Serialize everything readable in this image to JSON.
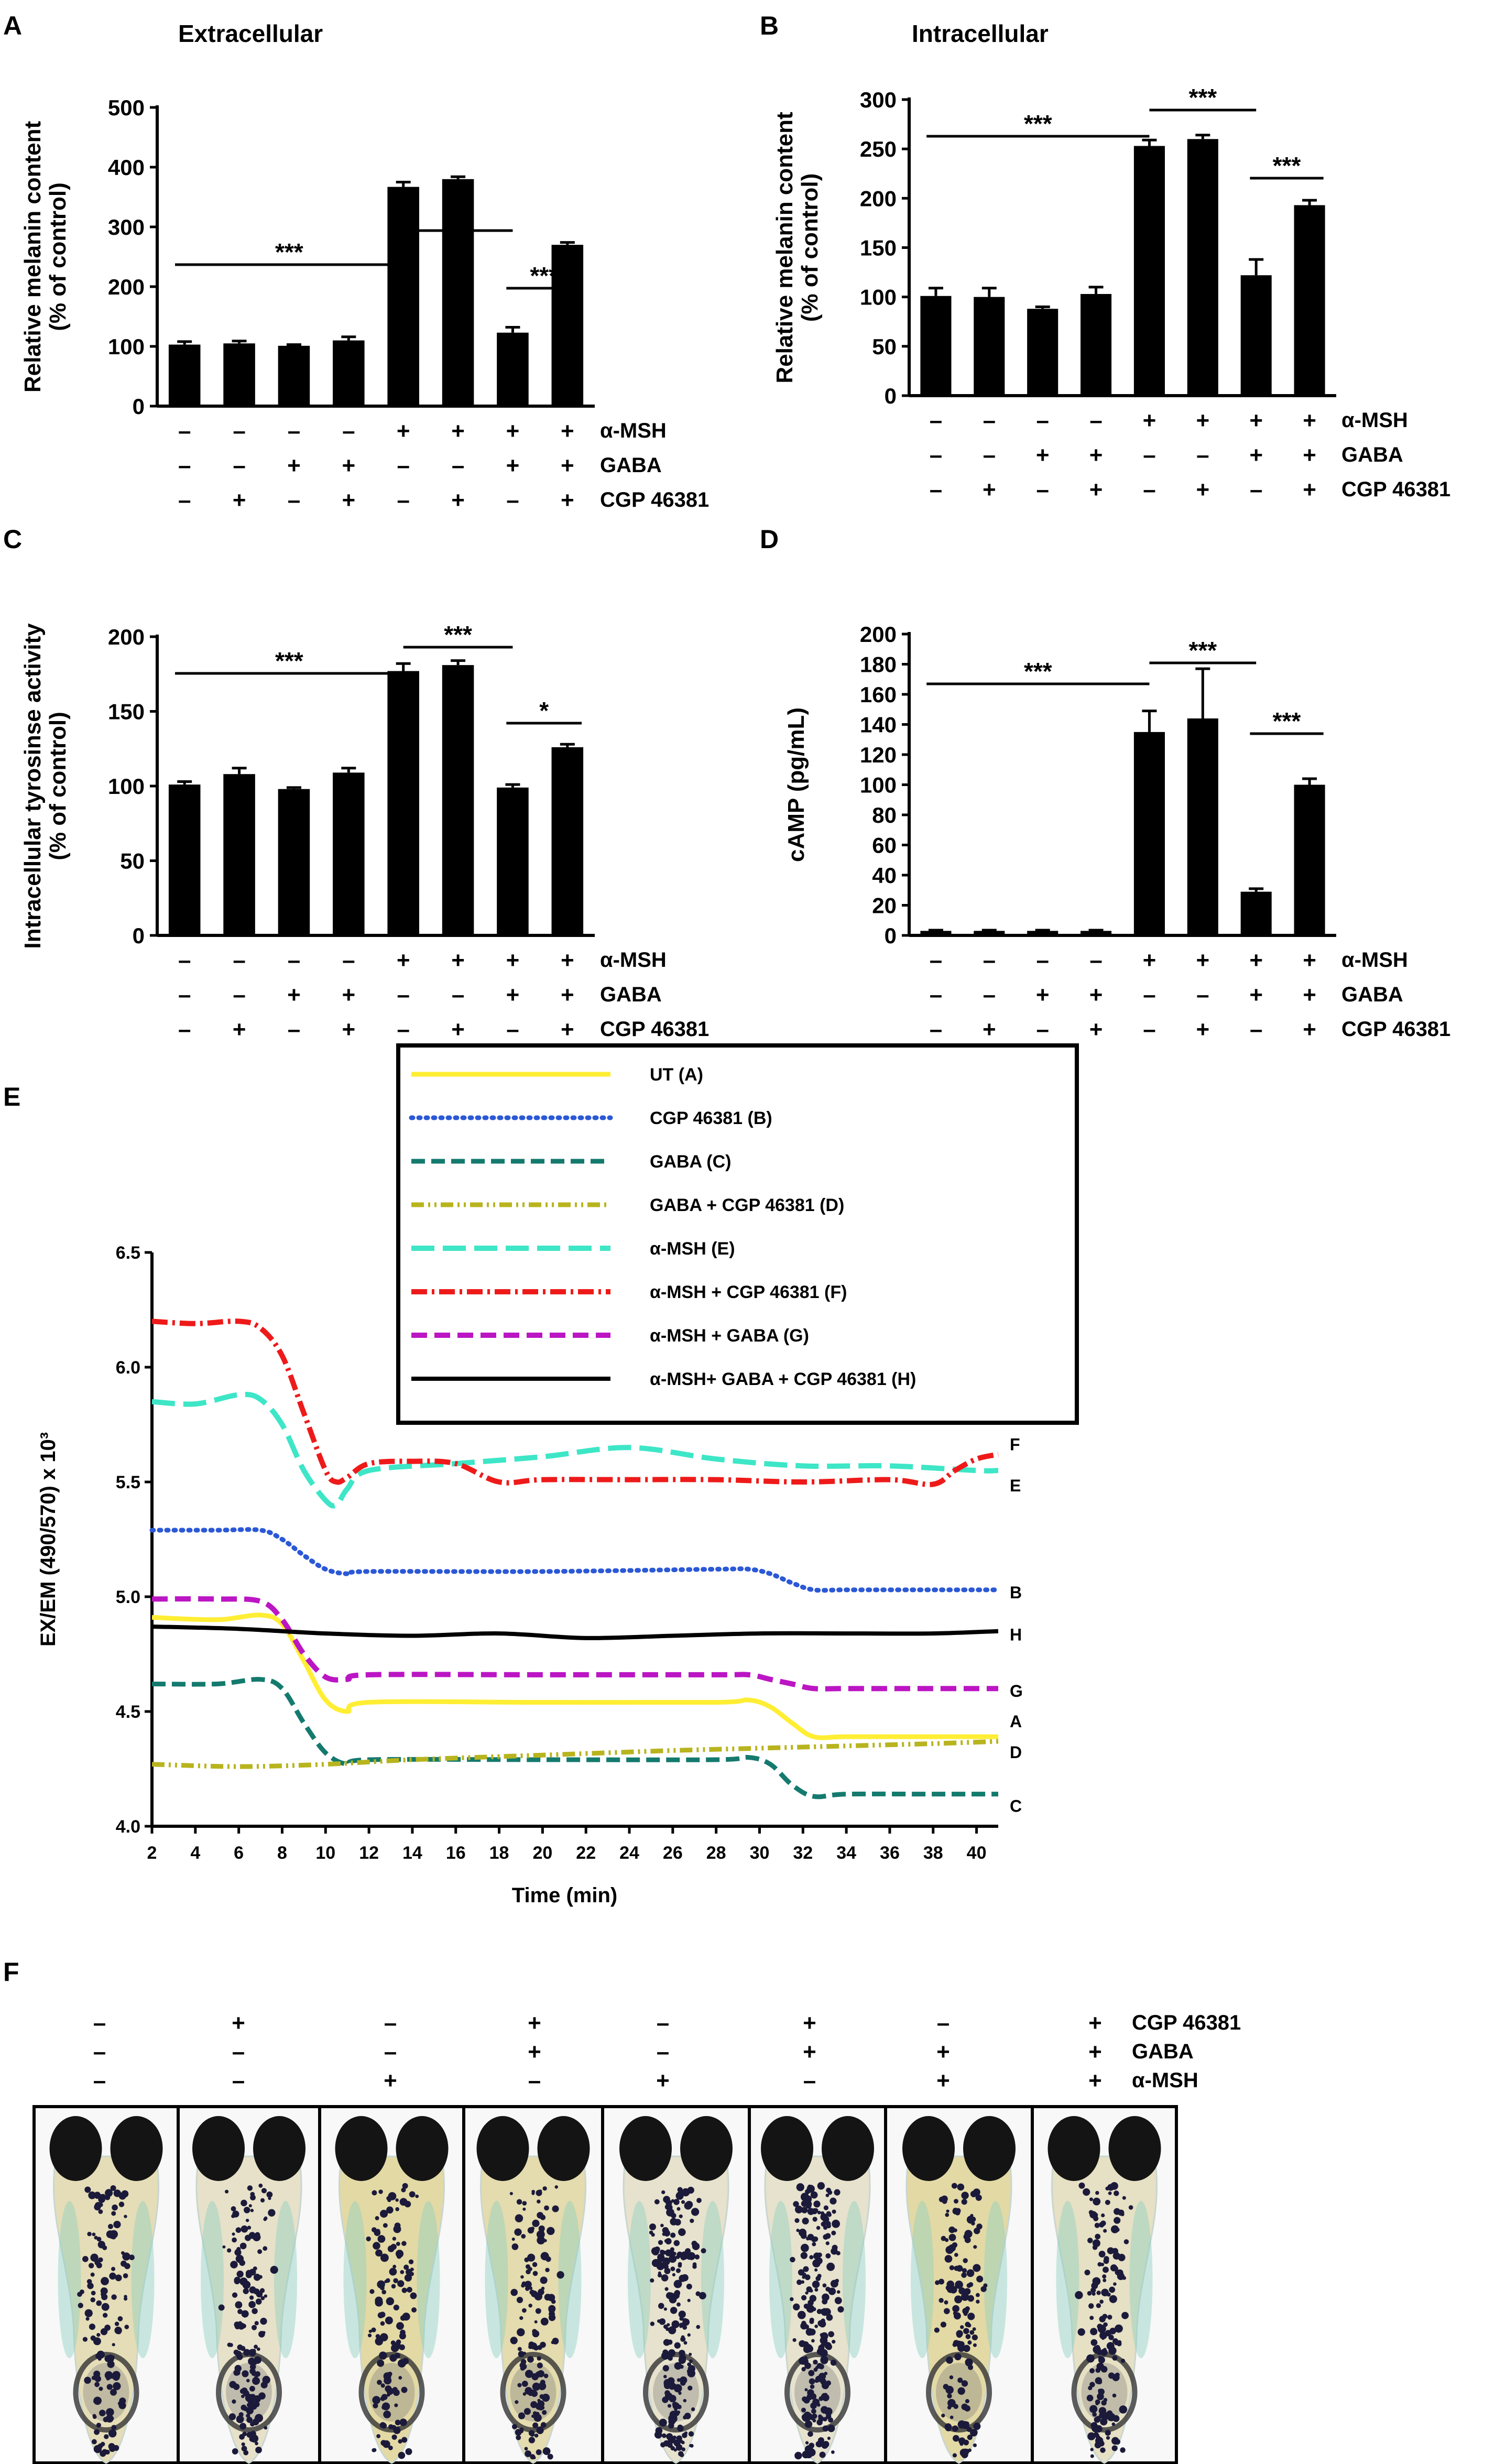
{
  "panel_labels": [
    "A",
    "B",
    "C",
    "D",
    "E",
    "F"
  ],
  "condition_rows": {
    "labels": [
      "α-MSH",
      "GABA",
      "CGP 46381"
    ],
    "alpha_msh": [
      "–",
      "–",
      "–",
      "–",
      "+",
      "+",
      "+",
      "+"
    ],
    "gaba": [
      "–",
      "–",
      "+",
      "+",
      "–",
      "–",
      "+",
      "+"
    ],
    "cgp": [
      "–",
      "+",
      "–",
      "+",
      "–",
      "+",
      "–",
      "+"
    ]
  },
  "chart_data": [
    {
      "id": "A",
      "type": "bar",
      "title": "Extracellular",
      "ylabel": "Relative melanin content\n(% of control)",
      "ylim": [
        0,
        500
      ],
      "yticks": [
        0,
        100,
        200,
        300,
        400,
        500
      ],
      "values": [
        103,
        105,
        101,
        110,
        367,
        380,
        123,
        270
      ],
      "errors": [
        5,
        4,
        2,
        6,
        8,
        4,
        9,
        4
      ],
      "significance": [
        {
          "from": 0,
          "to": 4,
          "label": "***"
        },
        {
          "from": 4,
          "to": 6,
          "label": "***"
        },
        {
          "from": 6,
          "to": 7,
          "label": "***"
        }
      ],
      "bar_color": "#000000"
    },
    {
      "id": "B",
      "type": "bar",
      "title": "Intracellular",
      "ylabel": "Relative melanin content\n(% of control)",
      "ylim": [
        0,
        300
      ],
      "yticks": [
        0,
        50,
        100,
        150,
        200,
        250,
        300
      ],
      "values": [
        101,
        100,
        88,
        103,
        253,
        260,
        122,
        193
      ],
      "errors": [
        8,
        9,
        2,
        7,
        6,
        4,
        16,
        5
      ],
      "significance": [
        {
          "from": 0,
          "to": 4,
          "label": "***"
        },
        {
          "from": 4,
          "to": 6,
          "label": "***"
        },
        {
          "from": 6,
          "to": 7,
          "label": "***"
        }
      ],
      "bar_color": "#000000"
    },
    {
      "id": "C",
      "type": "bar",
      "title": "",
      "ylabel": "Intracellular tyrosinse activity\n(% of control)",
      "ylim": [
        0,
        200
      ],
      "yticks": [
        0,
        50,
        100,
        150,
        200
      ],
      "values": [
        101,
        108,
        98,
        109,
        177,
        181,
        99,
        126
      ],
      "errors": [
        2,
        4,
        1,
        3,
        5,
        3,
        2,
        2
      ],
      "significance": [
        {
          "from": 0,
          "to": 4,
          "label": "***"
        },
        {
          "from": 4,
          "to": 6,
          "label": "***"
        },
        {
          "from": 6,
          "to": 7,
          "label": "*"
        }
      ],
      "bar_color": "#000000"
    },
    {
      "id": "D",
      "type": "bar",
      "title": "",
      "ylabel": "cAMP (pg/mL)",
      "ylim": [
        0,
        200
      ],
      "yticks": [
        0,
        20,
        40,
        60,
        80,
        100,
        120,
        140,
        160,
        180,
        200
      ],
      "values": [
        3,
        3,
        3,
        3,
        135,
        144,
        29,
        100
      ],
      "errors": [
        0.5,
        0.5,
        0.5,
        0.5,
        14,
        33,
        2,
        4
      ],
      "significance": [
        {
          "from": 0,
          "to": 4,
          "label": "***"
        },
        {
          "from": 4,
          "to": 6,
          "label": "***"
        },
        {
          "from": 6,
          "to": 7,
          "label": "***"
        }
      ],
      "bar_color": "#000000"
    },
    {
      "id": "E",
      "type": "line",
      "xlabel": "Time (min)",
      "ylabel": "EX/EM (490/570) x 10³",
      "xlim": [
        2,
        41
      ],
      "ylim": [
        4.0,
        6.5
      ],
      "xticks": [
        2,
        4,
        6,
        8,
        10,
        12,
        14,
        16,
        18,
        20,
        22,
        24,
        26,
        28,
        30,
        32,
        34,
        36,
        38,
        40
      ],
      "yticks": [
        4.0,
        4.5,
        5.0,
        5.5,
        6.0,
        6.5
      ],
      "series": [
        {
          "name": "UT (A)",
          "end_label": "A",
          "color": "#ffee33",
          "dash": "",
          "width": 9,
          "x": [
            2,
            5,
            7,
            8,
            9,
            10,
            11,
            12,
            20,
            28,
            29.5,
            30.5,
            31.5,
            32.5,
            34,
            38,
            41
          ],
          "y": [
            4.91,
            4.9,
            4.92,
            4.88,
            4.72,
            4.55,
            4.5,
            4.54,
            4.54,
            4.54,
            4.55,
            4.52,
            4.45,
            4.39,
            4.39,
            4.39,
            4.39
          ]
        },
        {
          "name": "CGP 46381 (B)",
          "end_label": "B",
          "color": "#2b58d6",
          "dash": "3,11",
          "width": 9,
          "x": [
            2,
            5,
            7,
            8,
            9,
            10,
            11,
            12,
            20,
            28,
            29.5,
            30.5,
            31.5,
            32.5,
            34,
            38,
            41
          ],
          "y": [
            5.29,
            5.29,
            5.29,
            5.25,
            5.18,
            5.12,
            5.1,
            5.11,
            5.11,
            5.12,
            5.12,
            5.1,
            5.06,
            5.03,
            5.03,
            5.03,
            5.03
          ]
        },
        {
          "name": "GABA (C)",
          "end_label": "C",
          "color": "#147a6e",
          "dash": "26,12",
          "width": 9,
          "x": [
            2,
            5,
            7,
            8,
            9,
            10,
            11,
            12,
            20,
            28,
            29.5,
            30.5,
            31.5,
            32.5,
            34,
            38,
            41
          ],
          "y": [
            4.62,
            4.62,
            4.64,
            4.6,
            4.45,
            4.32,
            4.27,
            4.29,
            4.29,
            4.29,
            4.3,
            4.27,
            4.18,
            4.13,
            4.14,
            4.14,
            4.14
          ]
        },
        {
          "name": "GABA + CGP 46381 (D)",
          "end_label": "D",
          "color": "#b8b41e",
          "dash": "24,8,4,8,4,8",
          "width": 9,
          "x": [
            2,
            6,
            10,
            14,
            20,
            26,
            30,
            34,
            38,
            41
          ],
          "y": [
            4.27,
            4.26,
            4.27,
            4.29,
            4.31,
            4.33,
            4.34,
            4.35,
            4.36,
            4.37
          ]
        },
        {
          "name": "α-MSH (E)",
          "end_label": "E",
          "color": "#3de6c6",
          "dash": "44,16",
          "width": 10,
          "x": [
            2,
            4,
            6,
            7,
            8,
            9,
            10,
            10.5,
            11,
            12,
            16,
            20,
            24,
            28,
            32,
            36,
            40,
            41
          ],
          "y": [
            5.85,
            5.84,
            5.88,
            5.86,
            5.75,
            5.55,
            5.42,
            5.4,
            5.47,
            5.55,
            5.58,
            5.61,
            5.65,
            5.6,
            5.57,
            5.57,
            5.55,
            5.55
          ]
        },
        {
          "name": "α-MSH + CGP 46381 (F)",
          "end_label": "F",
          "color": "#ee1a1a",
          "dash": "30,9,5,9",
          "width": 10,
          "x": [
            2,
            4,
            6,
            7,
            8,
            9,
            10,
            10.5,
            11,
            12,
            14,
            16,
            18,
            20,
            24,
            28,
            32,
            36,
            38,
            39,
            40,
            41
          ],
          "y": [
            6.2,
            6.19,
            6.2,
            6.17,
            6.05,
            5.8,
            5.55,
            5.5,
            5.52,
            5.58,
            5.59,
            5.58,
            5.5,
            5.51,
            5.51,
            5.51,
            5.5,
            5.51,
            5.49,
            5.55,
            5.6,
            5.62
          ]
        },
        {
          "name": "α-MSH + GABA (G)",
          "end_label": "G",
          "color": "#bb15c4",
          "dash": "30,14",
          "width": 10,
          "x": [
            2,
            5,
            7,
            8,
            9,
            10,
            11,
            12,
            20,
            28,
            29.5,
            30.5,
            31.5,
            32.5,
            34,
            38,
            41
          ],
          "y": [
            4.99,
            4.99,
            4.98,
            4.9,
            4.75,
            4.65,
            4.64,
            4.66,
            4.66,
            4.66,
            4.66,
            4.64,
            4.62,
            4.6,
            4.6,
            4.6,
            4.6
          ]
        },
        {
          "name": "α-MSH+ GABA + CGP 46381 (H)",
          "end_label": "H",
          "color": "#000000",
          "dash": "",
          "width": 8,
          "x": [
            2,
            6,
            10,
            14,
            18,
            22,
            26,
            30,
            34,
            38,
            41
          ],
          "y": [
            4.87,
            4.86,
            4.84,
            4.83,
            4.84,
            4.82,
            4.83,
            4.84,
            4.84,
            4.84,
            4.85
          ]
        }
      ]
    }
  ],
  "panel_f": {
    "row_labels": [
      "CGP 46381",
      "GABA",
      "α-MSH"
    ],
    "cgp": [
      "–",
      "+",
      "–",
      "+",
      "–",
      "+",
      "–",
      "+"
    ],
    "gaba": [
      "–",
      "–",
      "–",
      "+",
      "–",
      "+",
      "+",
      "+"
    ],
    "alpha_msh": [
      "–",
      "–",
      "+",
      "–",
      "+",
      "–",
      "+",
      "+"
    ],
    "pigment_density": [
      0.45,
      0.55,
      0.4,
      0.5,
      0.85,
      0.95,
      0.45,
      0.6
    ],
    "yolk_tint": [
      0.35,
      0.15,
      0.55,
      0.45,
      0.1,
      0.1,
      0.55,
      0.2
    ]
  }
}
